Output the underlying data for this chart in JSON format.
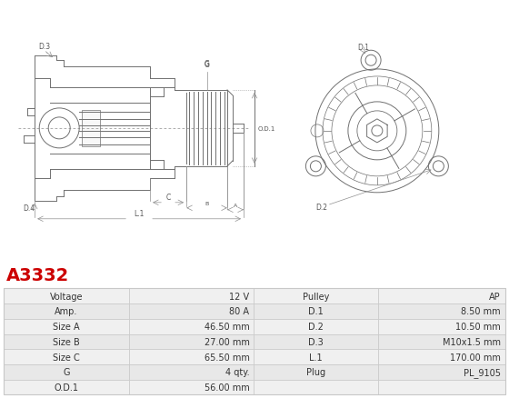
{
  "title": "A3332",
  "title_color": "#cc0000",
  "table_rows": [
    [
      "Voltage",
      "12 V",
      "Pulley",
      "AP"
    ],
    [
      "Amp.",
      "80 A",
      "D.1",
      "8.50 mm"
    ],
    [
      "Size A",
      "46.50 mm",
      "D.2",
      "10.50 mm"
    ],
    [
      "Size B",
      "27.00 mm",
      "D.3",
      "M10x1.5 mm"
    ],
    [
      "Size C",
      "65.50 mm",
      "L.1",
      "170.00 mm"
    ],
    [
      "G",
      "4 qty.",
      "Plug",
      "PL_9105"
    ],
    [
      "O.D.1",
      "56.00 mm",
      "",
      ""
    ]
  ],
  "row_bg_odd": "#f0f0f0",
  "row_bg_even": "#e8e8e8",
  "text_color": "#333333",
  "border_color": "#c8c8c8",
  "bg_color": "#ffffff",
  "line_color": "#707070",
  "dim_color": "#909090"
}
